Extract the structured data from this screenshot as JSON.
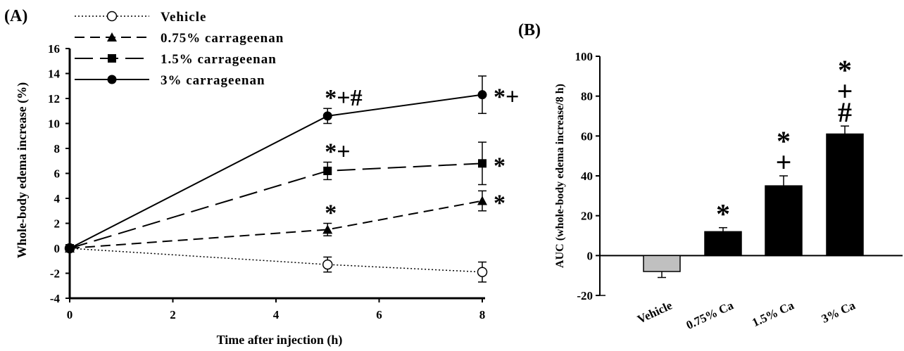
{
  "figure": {
    "panel_a_label": "(A)",
    "panel_b_label": "(B)"
  },
  "chart_data": [
    {
      "type": "line",
      "xlabel": "Time after injection (h)",
      "ylabel": "Whole-body edema increase (%)",
      "xlim": [
        0,
        8
      ],
      "ylim": [
        -4,
        16
      ],
      "x_ticks": [
        "0",
        "2",
        "4",
        "6",
        "8"
      ],
      "y_ticks": [
        "-4",
        "-2",
        "0",
        "2",
        "4",
        "6",
        "8",
        "10",
        "12",
        "14",
        "16"
      ],
      "x": [
        0,
        5,
        8
      ],
      "legend_position": "top-left",
      "series": [
        {
          "name": "Vehicle",
          "values": [
            0,
            -1.3,
            -1.9
          ],
          "errors": [
            0,
            0.6,
            0.8
          ],
          "line": "dotted",
          "marker": "open-circle"
        },
        {
          "name": "0.75% carrageenan",
          "values": [
            0,
            1.5,
            3.8
          ],
          "errors": [
            0,
            0.5,
            0.8
          ],
          "line": "dashed",
          "marker": "triangle"
        },
        {
          "name": "1.5% carrageenan",
          "values": [
            0,
            6.2,
            6.8
          ],
          "errors": [
            0,
            0.7,
            1.7
          ],
          "line": "long-dashed",
          "marker": "square"
        },
        {
          "name": "3% carrageenan",
          "values": [
            0,
            10.6,
            12.3
          ],
          "errors": [
            0,
            0.6,
            1.5
          ],
          "line": "solid",
          "marker": "circle"
        }
      ],
      "annotations": [
        {
          "series": "0.75% carrageenan",
          "x": 5,
          "text": "*"
        },
        {
          "series": "0.75% carrageenan",
          "x": 8,
          "text": "*"
        },
        {
          "series": "1.5% carrageenan",
          "x": 5,
          "text": "*+"
        },
        {
          "series": "1.5% carrageenan",
          "x": 8,
          "text": "*"
        },
        {
          "series": "3% carrageenan",
          "x": 5,
          "text": "*+#"
        },
        {
          "series": "3% carrageenan",
          "x": 8,
          "text": "*+"
        }
      ]
    },
    {
      "type": "bar",
      "ylabel": "AUC (whole-body edema increase/8 h)",
      "ylim": [
        -20,
        100
      ],
      "y_ticks": [
        "-20",
        "0",
        "20",
        "40",
        "60",
        "80",
        "100"
      ],
      "categories": [
        "Vehicle",
        "0.75% Ca",
        "1.5% Ca",
        "3% Ca"
      ],
      "values": [
        -8,
        12,
        35,
        61
      ],
      "errors": [
        3,
        2,
        5,
        4
      ],
      "colors": [
        "#c0c0c0",
        "#000000",
        "#000000",
        "#000000"
      ],
      "annotations": [
        {
          "category": "0.75% Ca",
          "text": "*"
        },
        {
          "category": "1.5% Ca",
          "text": "*+"
        },
        {
          "category": "3% Ca",
          "text": "*+#"
        }
      ]
    }
  ]
}
